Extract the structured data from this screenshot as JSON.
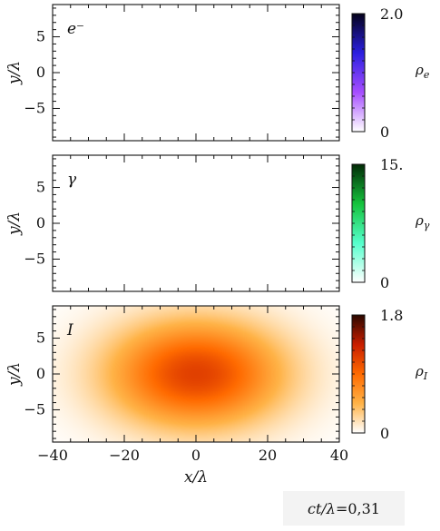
{
  "chart_data": [
    {
      "type": "heatmap",
      "panel_label": "e⁻",
      "ylabel": "y/λ",
      "xlim": [
        -40,
        40
      ],
      "ylim": [
        -9.5,
        9.5
      ],
      "yticks": [
        -5,
        0,
        5
      ],
      "ytick_labels": [
        "−5",
        "0",
        "5"
      ],
      "xticks": [
        -40,
        -20,
        0,
        20,
        40
      ],
      "xtick_labels": [],
      "field": "empty",
      "colorbar": {
        "label": "ρe",
        "min": 0,
        "max": 2.0,
        "min_label": "0",
        "max_label": "2.0",
        "colors": [
          "#ffffff",
          "#a64dff",
          "#2b1fe0",
          "#04021a"
        ]
      }
    },
    {
      "type": "heatmap",
      "panel_label": "γ",
      "ylabel": "y/λ",
      "xlim": [
        -40,
        40
      ],
      "ylim": [
        -9.5,
        9.5
      ],
      "yticks": [
        -5,
        0,
        5
      ],
      "ytick_labels": [
        "−5",
        "0",
        "5"
      ],
      "xticks": [
        -40,
        -20,
        0,
        20,
        40
      ],
      "xtick_labels": [],
      "field": "empty",
      "colorbar": {
        "label": "ργ",
        "min": 0,
        "max": 15,
        "min_label": "0",
        "max_label": "15.",
        "colors": [
          "#ffffff",
          "#55ffcc",
          "#14c23c",
          "#022a06"
        ]
      }
    },
    {
      "type": "heatmap",
      "panel_label": "I",
      "ylabel": "y/λ",
      "xlabel": "x/λ",
      "xlim": [
        -40,
        40
      ],
      "ylim": [
        -9.5,
        9.5
      ],
      "yticks": [
        -5,
        0,
        5
      ],
      "ytick_labels": [
        "−5",
        "0",
        "5"
      ],
      "xticks": [
        -40,
        -20,
        0,
        20,
        40
      ],
      "xtick_labels": [
        "−40",
        "−20",
        "0",
        "20",
        "40"
      ],
      "field": "gaussian",
      "gaussian": {
        "center": [
          0,
          0
        ],
        "sigma_x": 17,
        "sigma_y": 5.2,
        "peak": 1.15
      },
      "colorbar": {
        "label": "ρI",
        "min": 0,
        "max": 1.8,
        "min_label": "0",
        "max_label": "1.8",
        "colors": [
          "#ffffff",
          "#ffb347",
          "#ff6a00",
          "#c81e00",
          "#2a0800"
        ]
      }
    }
  ],
  "annotation": {
    "time_prefix": "ct/λ",
    "time_value": " =0,31"
  }
}
